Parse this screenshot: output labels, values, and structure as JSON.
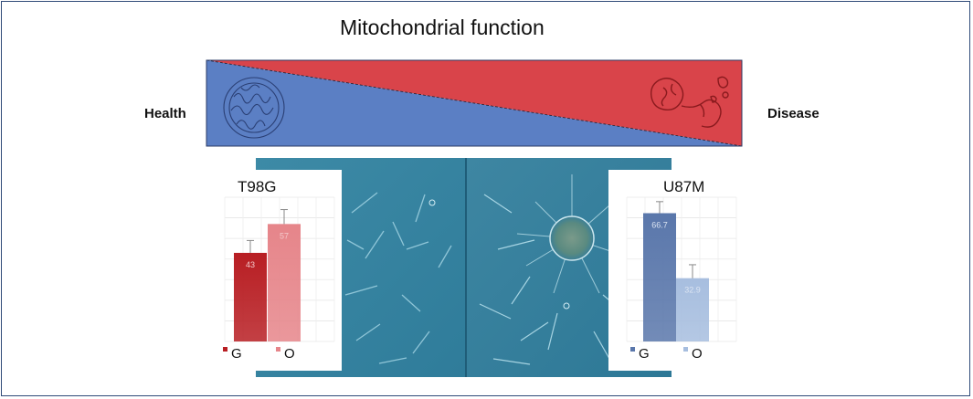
{
  "title": "Mitochondrial function",
  "left_label": "Health",
  "right_label": "Disease",
  "colors": {
    "health_blue": "#5b7fc4",
    "disease_red": "#d9444a",
    "frame": "#2f4a78"
  },
  "chart_data": [
    {
      "type": "bar",
      "title": "T98G",
      "categories": [
        "G",
        "O"
      ],
      "values": [
        43,
        57
      ],
      "data_labels": [
        "43",
        "57"
      ],
      "error": [
        6,
        7
      ],
      "colors": [
        "#b81e23",
        "#e6858a"
      ],
      "ylim": [
        0,
        70
      ],
      "legend": "bottom",
      "grid": true
    },
    {
      "type": "bar",
      "title": "U87M",
      "categories": [
        "G",
        "O"
      ],
      "values": [
        66.7,
        32.9
      ],
      "data_labels": [
        "66.7",
        "32.9"
      ],
      "error": [
        6,
        7
      ],
      "colors": [
        "#5a77ab",
        "#a7bedf"
      ],
      "ylim": [
        0,
        75
      ],
      "legend": "bottom",
      "grid": true
    }
  ]
}
